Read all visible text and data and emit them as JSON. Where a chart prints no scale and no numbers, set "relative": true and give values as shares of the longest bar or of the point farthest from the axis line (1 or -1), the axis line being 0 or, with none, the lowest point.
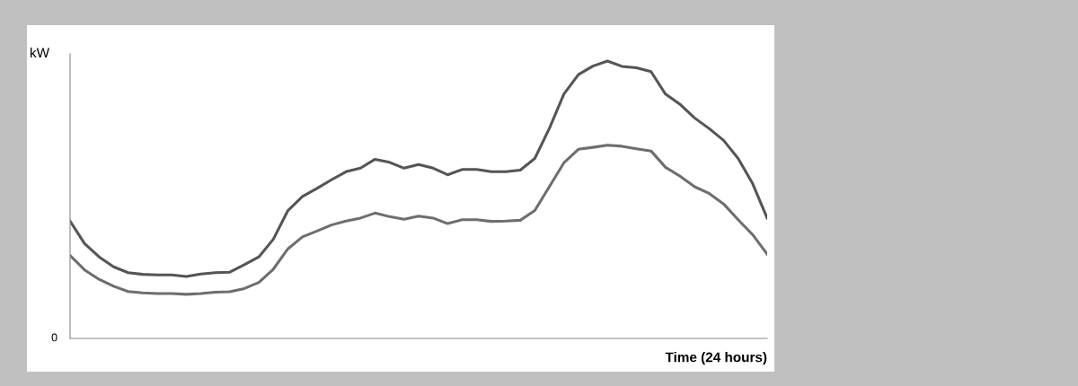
{
  "chart_data": {
    "type": "line",
    "relative": true,
    "ylabel": "kW",
    "xlabel": "Time (24 hours)",
    "annotations": [
      "0"
    ],
    "marker": "none",
    "line_style": "solid",
    "categories": [
      null,
      null,
      null,
      null,
      null,
      null,
      null,
      null,
      null,
      null,
      null,
      null,
      null,
      null,
      null,
      null,
      null,
      null,
      null,
      null,
      null,
      null,
      null,
      null,
      null,
      null,
      null,
      null,
      null,
      null,
      null,
      null,
      null,
      null,
      null,
      null,
      null,
      null,
      null,
      null,
      null,
      null,
      null,
      null,
      null,
      null,
      null,
      null,
      null
    ],
    "series": [
      {
        "color": "#555555",
        "values": [
          0.423,
          0.342,
          0.294,
          0.258,
          0.237,
          0.231,
          0.229,
          0.229,
          0.223,
          0.232,
          0.237,
          0.239,
          0.266,
          0.294,
          0.358,
          0.461,
          0.512,
          0.541,
          0.572,
          0.601,
          0.614,
          0.646,
          0.635,
          0.614,
          0.627,
          0.614,
          0.59,
          0.609,
          0.609,
          0.601,
          0.601,
          0.607,
          0.649,
          0.757,
          0.881,
          0.951,
          0.982,
          1.0,
          0.981,
          0.976,
          0.962,
          0.881,
          0.844,
          0.795,
          0.757,
          0.714,
          0.649,
          0.558,
          0.434
        ]
      },
      {
        "color": "#6e6e6e",
        "values": [
          0.299,
          0.247,
          0.213,
          0.188,
          0.169,
          0.164,
          0.162,
          0.162,
          0.159,
          0.162,
          0.167,
          0.168,
          0.18,
          0.202,
          0.25,
          0.323,
          0.366,
          0.387,
          0.409,
          0.423,
          0.434,
          0.452,
          0.439,
          0.43,
          0.441,
          0.434,
          0.414,
          0.428,
          0.428,
          0.422,
          0.423,
          0.426,
          0.461,
          0.547,
          0.633,
          0.682,
          0.689,
          0.697,
          0.693,
          0.684,
          0.676,
          0.617,
          0.585,
          0.547,
          0.523,
          0.485,
          0.428,
          0.374,
          0.304
        ]
      }
    ]
  }
}
